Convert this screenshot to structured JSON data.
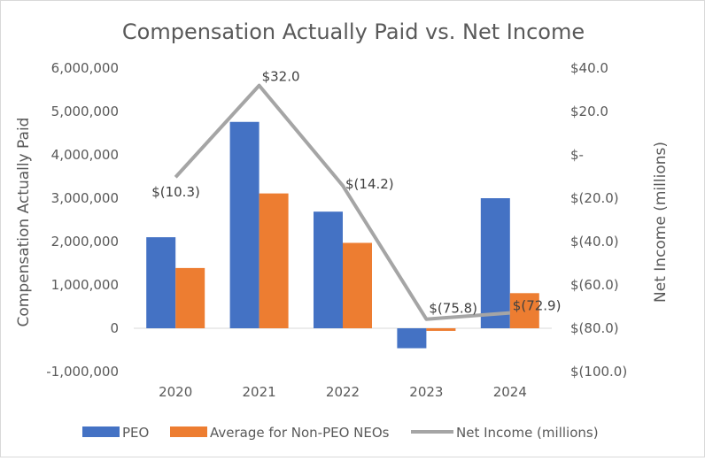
{
  "chart_data": {
    "type": "bar",
    "title": "Compensation Actually Paid vs. Net Income",
    "categories": [
      "2020",
      "2021",
      "2022",
      "2023",
      "2024"
    ],
    "ylabel": "Compensation Actually Paid",
    "y2label": "Net Income (millions)",
    "ylim": [
      -1000000,
      6000000
    ],
    "y2lim": [
      -100,
      40
    ],
    "y_ticks": [
      6000000,
      5000000,
      4000000,
      3000000,
      2000000,
      1000000,
      0,
      -1000000
    ],
    "y_tick_labels": [
      "6,000,000",
      "5,000,000",
      "4,000,000",
      "3,000,000",
      "2,000,000",
      "1,000,000",
      "0",
      "-1,000,000"
    ],
    "y2_ticks": [
      40,
      20,
      0,
      -20,
      -40,
      -60,
      -80,
      -100
    ],
    "y2_tick_labels": [
      "$40.0",
      "$20.0",
      "$-",
      "$(20.0)",
      "$(40.0)",
      "$(60.0)",
      "$(80.0)",
      "$(100.0)"
    ],
    "grid": false,
    "legend_position": "bottom",
    "series": [
      {
        "name": "PEO",
        "type": "bar",
        "axis": "left",
        "color": "#4472c4",
        "values": [
          2100000,
          4760000,
          2690000,
          -460000,
          3000000
        ]
      },
      {
        "name": "Average for Non-PEO NEOs",
        "type": "bar",
        "axis": "left",
        "color": "#ed7d31",
        "values": [
          1390000,
          3110000,
          1970000,
          -60000,
          810000
        ]
      },
      {
        "name": "Net Income (millions)",
        "type": "line",
        "axis": "right",
        "color": "#a5a5a5",
        "values": [
          -10.3,
          32.0,
          -14.2,
          -75.8,
          -72.9
        ],
        "labels": [
          "$(10.3)",
          "$32.0",
          "$(14.2)",
          "$(75.8)",
          "$(72.9)"
        ]
      }
    ]
  }
}
